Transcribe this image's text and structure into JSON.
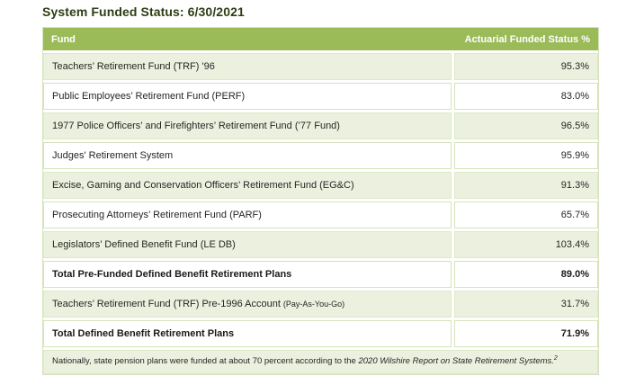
{
  "page": {
    "title": "System Funded Status: 6/30/2021"
  },
  "table": {
    "header": {
      "fund": "Fund",
      "status": "Actuarial Funded Status %"
    },
    "rows": [
      {
        "fund": "Teachers’ Retirement Fund (TRF) '96",
        "status": "95.3%"
      },
      {
        "fund": "Public Employees’ Retirement Fund (PERF)",
        "status": "83.0%"
      },
      {
        "fund": "1977 Police Officers’ and Firefighters’ Retirement Fund (’77 Fund)",
        "status": "96.5%"
      },
      {
        "fund": "Judges' Retirement System",
        "status": "95.9%"
      },
      {
        "fund": "Excise, Gaming and Conservation Officers’ Retirement Fund (EG&C)",
        "status": "91.3%"
      },
      {
        "fund": "Prosecuting Attorneys’ Retirement Fund (PARF)",
        "status": "65.7%"
      },
      {
        "fund": "Legislators’ Defined Benefit Fund (LE DB)",
        "status": "103.4%"
      },
      {
        "fund": "Total Pre-Funded Defined Benefit Retirement Plans",
        "status": "89.0%"
      },
      {
        "fund": "Teachers’ Retirement Fund (TRF) Pre-1996 Account",
        "fund_suffix": "(Pay-As-You-Go)",
        "status": "31.7%"
      },
      {
        "fund": "Total Defined Benefit Retirement Plans",
        "status": "71.9%"
      }
    ],
    "footnote": {
      "text": "Nationally, state pension plans were funded at about 70 percent according to the ",
      "italic": "2020 Wilshire Report on State Retirement Systems.",
      "superscript": "2"
    }
  },
  "colors": {
    "header_green": "#9bbb59",
    "row_green": "#ebf1de",
    "border_green": "#d6e3bc",
    "title_text": "#2e3d14",
    "header_text": "#ffffff",
    "body_text": "#262626"
  }
}
